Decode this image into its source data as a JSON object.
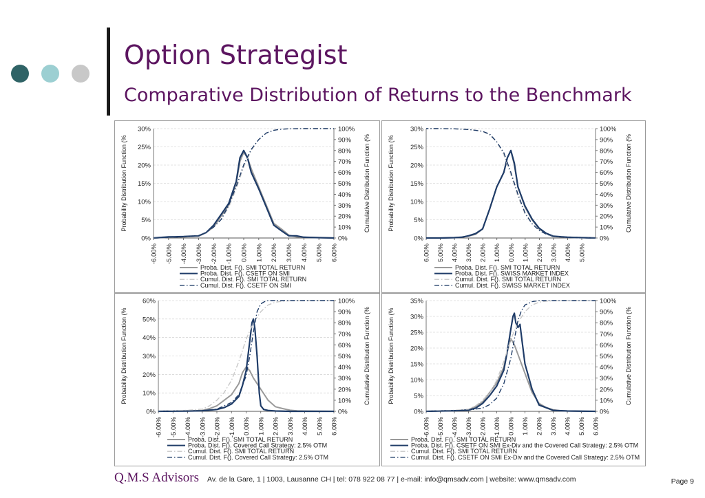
{
  "header": {
    "title": "Option Strategist",
    "subtitle": "Comparative Distribution of Returns to the Benchmark"
  },
  "decor": {
    "dot_colors": [
      "#2f6366",
      "#9ccfd2",
      "#c8c8c8"
    ],
    "accent": "#5c1560"
  },
  "footer": {
    "brand": "Q.M.S Advisors",
    "contact": "Av. de la Gare, 1 | 1003, Lausanne CH | tel: 078 922 08 77 | e-mail: info@qmsadv.com | website: www.qmsadv.com",
    "page": "Page 9"
  },
  "chart_data": [
    {
      "type": "line",
      "ylabel": "Probability Distribution Function (%",
      "y2label": "Cumulative Distribution Function (%",
      "xlim": [
        -6,
        6
      ],
      "ylim": [
        0,
        30
      ],
      "y2lim": [
        0,
        100
      ],
      "x_ticks": [
        "-6.00%",
        "-5.00%",
        "-4.00%",
        "-3.00%",
        "-2.00%",
        "-1.00%",
        "0.00%",
        "1.00%",
        "2.00%",
        "3.00%",
        "4.00%",
        "5.00%",
        "6.00%"
      ],
      "y_ticks": [
        "0%",
        "5%",
        "10%",
        "15%",
        "20%",
        "25%",
        "30%"
      ],
      "y2_ticks": [
        "0%",
        "10%",
        "20%",
        "30%",
        "40%",
        "50%",
        "60%",
        "70%",
        "80%",
        "90%",
        "100%"
      ],
      "grid": true,
      "legend_position": "bottom",
      "series": [
        {
          "name": "Proba. Dist. F(). SMI TOTAL RETURN",
          "axis": "left",
          "color": "#9a9a9a",
          "dash": "solid",
          "x": [
            -6,
            -5,
            -4,
            -3,
            -2.5,
            -2,
            -1.5,
            -1,
            -0.5,
            -0.25,
            0,
            0.25,
            0.5,
            1,
            1.5,
            2,
            2.5,
            3,
            3.5,
            4,
            5,
            6
          ],
          "y": [
            0,
            0.2,
            0.3,
            0.5,
            1.5,
            3,
            6,
            9,
            15,
            21,
            23.5,
            22,
            19,
            14,
            9,
            4,
            2.5,
            0.8,
            0.3,
            0.2,
            0.1,
            0
          ]
        },
        {
          "name": "Proba. Dist. F(). CSETF ON SMI",
          "axis": "left",
          "color": "#1f3c68",
          "dash": "solid",
          "x": [
            -6,
            -5,
            -4,
            -3,
            -2.5,
            -2,
            -1.5,
            -1,
            -0.5,
            -0.25,
            0,
            0.25,
            0.5,
            1,
            1.5,
            2,
            2.5,
            3,
            3.5,
            4,
            5,
            6
          ],
          "y": [
            0,
            0.3,
            0.4,
            0.6,
            1.5,
            3.5,
            6.5,
            9.5,
            15.5,
            22,
            24,
            22,
            18,
            13.5,
            8.5,
            3.5,
            2,
            0.6,
            0.6,
            0.2,
            0.1,
            0
          ]
        },
        {
          "name": "Cumul. Dist. F(). SMI TOTAL RETURN",
          "axis": "right",
          "color": "#c8c8c8",
          "dash": "dashdot",
          "x": [
            -6,
            -4,
            -3,
            -2.5,
            -2,
            -1.5,
            -1,
            -0.5,
            0,
            0.5,
            1,
            1.5,
            2,
            2.5,
            3,
            4,
            5,
            6
          ],
          "y": [
            0,
            1,
            2,
            5,
            10,
            17,
            28,
            45,
            65,
            80,
            90,
            96,
            98.5,
            99.5,
            99.8,
            100,
            100,
            100
          ]
        },
        {
          "name": "Cumul. Dist. F(). CSETF ON SMI",
          "axis": "right",
          "color": "#1f3c68",
          "dash": "dashdot",
          "x": [
            -6,
            -4,
            -3,
            -2.5,
            -2,
            -1.5,
            -1,
            -0.5,
            0,
            0.5,
            1,
            1.5,
            2,
            2.5,
            3,
            4,
            5,
            6
          ],
          "y": [
            0,
            1,
            2,
            5,
            10,
            17,
            30,
            47,
            67,
            81,
            90,
            96,
            98.5,
            99.5,
            99.8,
            100,
            100,
            100
          ]
        }
      ]
    },
    {
      "type": "line",
      "ylabel": "Probability Distribution Function (%",
      "y2label": "Cumulative Distribution Function (%",
      "xlim": [
        -6,
        6
      ],
      "x_reversed": true,
      "ylim": [
        0,
        30
      ],
      "y2lim": [
        0,
        100
      ],
      "x_ticks": [
        "6.00%",
        "5.00%",
        "4.00%",
        "3.00%",
        "2.00%",
        "1.00%",
        "0.00%",
        "1.00%",
        "2.00%",
        "3.00%",
        "4.00%",
        "5.00%"
      ],
      "y_ticks": [
        "0%",
        "5%",
        "10%",
        "15%",
        "20%",
        "25%",
        "30%"
      ],
      "y2_ticks": [
        "0%",
        "10%",
        "20%",
        "30%",
        "40%",
        "50%",
        "60%",
        "70%",
        "80%",
        "90%",
        "100%"
      ],
      "grid": true,
      "legend_position": "bottom",
      "series": [
        {
          "name": "Proba. Dist. F(). SMI TOTAL RETURN",
          "axis": "left",
          "color": "#9a9a9a",
          "dash": "solid",
          "x": [
            -6,
            -5,
            -4,
            -3,
            -2.5,
            -2,
            -1.5,
            -1,
            -0.5,
            -0.25,
            0,
            0.25,
            0.5,
            1,
            1.5,
            2,
            2.5,
            3,
            3.5,
            4,
            5,
            6
          ],
          "y": [
            0,
            0.1,
            0.2,
            0.4,
            1.2,
            2.5,
            5,
            8.5,
            14,
            20,
            24,
            22,
            18,
            14,
            8,
            2.5,
            1,
            0.5,
            0.2,
            0.1,
            0,
            0
          ]
        },
        {
          "name": "Proba. Dist. F(). SWISS MARKET INDEX",
          "axis": "left",
          "color": "#1f3c68",
          "dash": "solid",
          "x": [
            -6,
            -5,
            -4,
            -3,
            -2.5,
            -2,
            -1.5,
            -1,
            -0.5,
            -0.25,
            0,
            0.25,
            0.5,
            1,
            1.5,
            2,
            2.5,
            3,
            3.5,
            4,
            5,
            6
          ],
          "y": [
            0,
            0.1,
            0.2,
            0.5,
            1.3,
            2.7,
            5.2,
            8.8,
            14,
            20.5,
            24,
            22,
            18,
            14,
            8,
            2.5,
            1.2,
            0.6,
            0.2,
            0.1,
            0,
            0
          ]
        },
        {
          "name": "Cumul. Dist. F(). SMI TOTAL RETURN",
          "axis": "right",
          "color": "#c8c8c8",
          "dash": "dashdot",
          "x": [
            -6,
            -4,
            -3,
            -2.5,
            -2,
            -1.5,
            -1,
            -0.5,
            0,
            0.5,
            1,
            1.5,
            2,
            2.5,
            3,
            4,
            5,
            6
          ],
          "y": [
            0,
            0.5,
            1.5,
            3.5,
            7,
            13,
            22,
            38,
            58,
            76,
            88,
            94,
            97.5,
            98.5,
            99.2,
            99.8,
            100,
            100
          ]
        },
        {
          "name": "Cumul. Dist. F(). SWISS MARKET INDEX",
          "axis": "right",
          "color": "#1f3c68",
          "dash": "dashdot",
          "x": [
            -6,
            -4,
            -3,
            -2.5,
            -2,
            -1.5,
            -1,
            -0.5,
            0,
            0.5,
            1,
            1.5,
            2,
            2.5,
            3,
            4,
            5,
            6
          ],
          "y": [
            0,
            0.5,
            1.5,
            3.5,
            7,
            13,
            23,
            40,
            60,
            78,
            88,
            95,
            97.5,
            98.5,
            99.2,
            99.8,
            100,
            100
          ]
        }
      ]
    },
    {
      "type": "line",
      "ylabel": "Probability Distribution Function (%",
      "y2label": "Cumulative Distribution Function (%",
      "xlim": [
        -6,
        6
      ],
      "ylim": [
        0,
        60
      ],
      "y2lim": [
        0,
        100
      ],
      "x_ticks": [
        "-6.00%",
        "-5.00%",
        "-4.00%",
        "-3.00%",
        "-2.00%",
        "-1.00%",
        "0.00%",
        "1.00%",
        "2.00%",
        "3.00%",
        "4.00%",
        "5.00%",
        "6.00%"
      ],
      "y_ticks": [
        "0%",
        "10%",
        "20%",
        "30%",
        "40%",
        "50%",
        "60%"
      ],
      "y2_ticks": [
        "0%",
        "10%",
        "20%",
        "30%",
        "40%",
        "50%",
        "60%",
        "70%",
        "80%",
        "90%",
        "100%"
      ],
      "grid": true,
      "legend_position": "bottom",
      "series": [
        {
          "name": "Proba. Dist. F(). SMI TOTAL RETURN",
          "axis": "left",
          "color": "#9a9a9a",
          "dash": "solid",
          "x": [
            -6,
            -5,
            -4,
            -3,
            -2.5,
            -2,
            -1.5,
            -1,
            -0.5,
            -0.25,
            0,
            0.25,
            0.5,
            1,
            1.5,
            2,
            2.5,
            3,
            3.5,
            4,
            5,
            6
          ],
          "y": [
            0,
            0.2,
            0.3,
            0.5,
            1.5,
            3,
            6,
            9,
            15,
            21,
            24,
            22,
            18,
            12,
            6,
            2.5,
            1.5,
            0.6,
            0.3,
            0.2,
            0.1,
            0
          ]
        },
        {
          "name": "Proba. Dist. F(). Covered Call Strategy: 2.5% OTM",
          "axis": "left",
          "color": "#1f3c68",
          "dash": "solid",
          "x": [
            -6,
            -4,
            -3,
            -2,
            -1.5,
            -1,
            -0.5,
            -0.25,
            0,
            0.25,
            0.4,
            0.5,
            0.6,
            0.75,
            0.9,
            1,
            1.2,
            1.5,
            2,
            3,
            6
          ],
          "y": [
            0,
            0.1,
            0.3,
            1,
            2,
            4,
            8,
            14,
            22,
            38,
            48,
            50,
            45,
            30,
            10,
            3,
            1,
            0.5,
            0.2,
            0,
            0
          ]
        },
        {
          "name": "Cumul. Dist. F(). SMI TOTAL RETURN",
          "axis": "right",
          "color": "#c8c8c8",
          "dash": "dashdot",
          "x": [
            -6,
            -4,
            -3,
            -2.5,
            -2,
            -1.5,
            -1,
            -0.5,
            0,
            0.5,
            1,
            1.5,
            2,
            2.5,
            3,
            4,
            5,
            6
          ],
          "y": [
            0,
            1,
            2,
            5,
            10,
            17,
            28,
            45,
            65,
            80,
            90,
            96,
            98.5,
            99.5,
            99.8,
            100,
            100,
            100
          ]
        },
        {
          "name": "Cumul. Dist. F(). Covered Call Strategy: 2.5% OTM",
          "axis": "right",
          "color": "#1f3c68",
          "dash": "dashdot",
          "x": [
            -6,
            -3,
            -2,
            -1,
            -0.5,
            0,
            0.25,
            0.5,
            0.75,
            1,
            1.25,
            1.5,
            2,
            6
          ],
          "y": [
            0,
            0.5,
            2,
            8,
            15,
            32,
            50,
            72,
            90,
            97,
            99,
            100,
            100,
            100
          ]
        }
      ]
    },
    {
      "type": "line",
      "ylabel": "Probability Distribution Function (%",
      "y2label": "Cumulative Distribution Function (%",
      "xlim": [
        -6,
        6
      ],
      "ylim": [
        0,
        35
      ],
      "y2lim": [
        0,
        100
      ],
      "x_ticks": [
        "-6.00%",
        "-5.00%",
        "-4.00%",
        "-3.00%",
        "-2.00%",
        "-1.00%",
        "0.00%",
        "1.00%",
        "2.00%",
        "3.00%",
        "4.00%",
        "5.00%",
        "6.00%"
      ],
      "y_ticks": [
        "0%",
        "5%",
        "10%",
        "15%",
        "20%",
        "25%",
        "30%",
        "35%"
      ],
      "y2_ticks": [
        "0%",
        "10%",
        "20%",
        "30%",
        "40%",
        "50%",
        "60%",
        "70%",
        "80%",
        "90%",
        "100%"
      ],
      "grid": true,
      "legend_position": "bottom",
      "series": [
        {
          "name": "Proba. Dist. F(). SMI TOTAL RETURN",
          "axis": "left",
          "color": "#9a9a9a",
          "dash": "solid",
          "x": [
            -6,
            -5,
            -4,
            -3,
            -2.5,
            -2,
            -1.5,
            -1,
            -0.5,
            -0.25,
            0,
            0.25,
            0.5,
            1,
            1.5,
            2,
            2.5,
            3,
            3.5,
            4,
            5,
            6
          ],
          "y": [
            0,
            0.1,
            0.2,
            0.5,
            1.5,
            3,
            6,
            9,
            14,
            19,
            23,
            21,
            18,
            12,
            6,
            2.5,
            1.2,
            0.5,
            0.2,
            0.1,
            0,
            0
          ]
        },
        {
          "name": "Proba. Dist. F(). CSETF ON SMI Ex-Div and the Covered Call Strategy: 2.5% OTM",
          "axis": "left",
          "color": "#1f3c68",
          "dash": "solid",
          "x": [
            -6,
            -4,
            -3,
            -2.5,
            -2,
            -1.5,
            -1,
            -0.5,
            -0.25,
            0,
            0.15,
            0.25,
            0.35,
            0.5,
            0.65,
            0.8,
            1,
            1.5,
            2,
            3,
            4,
            6
          ],
          "y": [
            0,
            0.2,
            0.4,
            1,
            2.5,
            5,
            8,
            13,
            19,
            26,
            30,
            31,
            28,
            26.5,
            27.5,
            22,
            15,
            7,
            2,
            0.3,
            0.1,
            0
          ]
        },
        {
          "name": "Cumul. Dist. F(). SMI TOTAL RETURN",
          "axis": "right",
          "color": "#c8c8c8",
          "dash": "dashdot",
          "x": [
            -6,
            -4,
            -3,
            -2.5,
            -2,
            -1.5,
            -1,
            -0.5,
            0,
            0.5,
            1,
            1.5,
            2,
            2.5,
            3,
            4,
            5,
            6
          ],
          "y": [
            0,
            1,
            2,
            5,
            10,
            17,
            28,
            45,
            65,
            80,
            90,
            96,
            98.5,
            99.5,
            99.8,
            100,
            100,
            100
          ]
        },
        {
          "name": "Cumul. Dist. F(). CSETF ON SMI Ex-Div and the Covered Call Strategy: 2.5% OTM",
          "axis": "right",
          "color": "#1f3c68",
          "dash": "dashdot",
          "x": [
            -6,
            -3,
            -2,
            -1.5,
            -1,
            -0.5,
            0,
            0.25,
            0.5,
            0.75,
            1,
            1.5,
            2,
            6
          ],
          "y": [
            0,
            1,
            3,
            6,
            12,
            25,
            48,
            65,
            82,
            91,
            96,
            99,
            100,
            100
          ]
        }
      ]
    }
  ]
}
